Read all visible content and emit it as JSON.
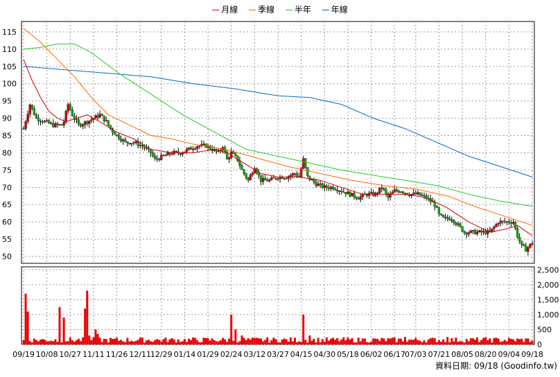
{
  "chart_data": {
    "type": "candlestick",
    "legend": [
      {
        "name": "月線",
        "color": "#cc0000"
      },
      {
        "name": "季線",
        "color": "#ff6600"
      },
      {
        "name": "半年",
        "color": "#22cc22"
      },
      {
        "name": "年線",
        "color": "#0066cc"
      }
    ],
    "price_axis": {
      "ticks": [
        "115",
        "110",
        "105",
        "100",
        "95",
        "90",
        "85",
        "80",
        "75",
        "70",
        "65",
        "60",
        "55",
        "50"
      ],
      "range": [
        48,
        118
      ]
    },
    "volume_axis": {
      "ticks": [
        "2,500",
        "2,000",
        "1,500",
        "1,000",
        "500",
        "0"
      ],
      "range": [
        0,
        2600
      ]
    },
    "x_labels": [
      "09/19",
      "10/08",
      "10/27",
      "11/11",
      "11/26",
      "12/11",
      "12/29",
      "01/14",
      "01/29",
      "02/24",
      "03/12",
      "03/27",
      "04/15",
      "04/30",
      "05/18",
      "06/02",
      "06/17",
      "07/03",
      "07/21",
      "08/05",
      "08/20",
      "09/04",
      "09/18"
    ],
    "price_anchors": [
      [
        0,
        87
      ],
      [
        3,
        94
      ],
      [
        6,
        90
      ],
      [
        10,
        89
      ],
      [
        14,
        88
      ],
      [
        18,
        88
      ],
      [
        19,
        89
      ],
      [
        21,
        94
      ],
      [
        23,
        91
      ],
      [
        26,
        88
      ],
      [
        30,
        89
      ],
      [
        33,
        90
      ],
      [
        36,
        91
      ],
      [
        39,
        89
      ],
      [
        41,
        87
      ],
      [
        44,
        85
      ],
      [
        48,
        83
      ],
      [
        52,
        83
      ],
      [
        56,
        82
      ],
      [
        60,
        80
      ],
      [
        62,
        78
      ],
      [
        66,
        79
      ],
      [
        70,
        80
      ],
      [
        74,
        80
      ],
      [
        78,
        81
      ],
      [
        82,
        82
      ],
      [
        86,
        82
      ],
      [
        89,
        81
      ],
      [
        92,
        80
      ],
      [
        94,
        82
      ],
      [
        96,
        78
      ],
      [
        98,
        80
      ],
      [
        101,
        78
      ],
      [
        103,
        75
      ],
      [
        106,
        72
      ],
      [
        109,
        76
      ],
      [
        112,
        72
      ],
      [
        116,
        72
      ],
      [
        120,
        73
      ],
      [
        124,
        73
      ],
      [
        128,
        74
      ],
      [
        130,
        73
      ],
      [
        132,
        78
      ],
      [
        134,
        73
      ],
      [
        138,
        71
      ],
      [
        142,
        70
      ],
      [
        146,
        70
      ],
      [
        150,
        69
      ],
      [
        154,
        68
      ],
      [
        158,
        67
      ],
      [
        162,
        68
      ],
      [
        166,
        68
      ],
      [
        169,
        70
      ],
      [
        172,
        67
      ],
      [
        175,
        69
      ],
      [
        178,
        69
      ],
      [
        182,
        68
      ],
      [
        186,
        68
      ],
      [
        190,
        67
      ],
      [
        194,
        65
      ],
      [
        196,
        62
      ],
      [
        198,
        61
      ],
      [
        202,
        61
      ],
      [
        205,
        59
      ],
      [
        208,
        57
      ],
      [
        212,
        57
      ],
      [
        216,
        57
      ],
      [
        220,
        57
      ],
      [
        224,
        60
      ],
      [
        228,
        60
      ],
      [
        231,
        60
      ],
      [
        233,
        56
      ],
      [
        235,
        53
      ],
      [
        237,
        52
      ],
      [
        240,
        54
      ]
    ],
    "ma_month": [
      [
        0,
        107
      ],
      [
        4,
        101
      ],
      [
        8,
        96
      ],
      [
        12,
        92
      ],
      [
        16,
        90
      ],
      [
        20,
        89
      ],
      [
        25,
        90
      ],
      [
        30,
        91
      ],
      [
        36,
        89
      ],
      [
        44,
        86
      ],
      [
        52,
        84
      ],
      [
        60,
        81
      ],
      [
        70,
        80
      ],
      [
        80,
        80
      ],
      [
        90,
        81
      ],
      [
        96,
        80
      ],
      [
        104,
        77
      ],
      [
        112,
        74
      ],
      [
        120,
        73
      ],
      [
        130,
        73
      ],
      [
        140,
        72
      ],
      [
        150,
        70
      ],
      [
        160,
        68
      ],
      [
        170,
        68
      ],
      [
        180,
        68
      ],
      [
        190,
        67
      ],
      [
        200,
        64
      ],
      [
        210,
        60
      ],
      [
        220,
        57
      ],
      [
        228,
        58
      ],
      [
        233,
        59
      ],
      [
        240,
        56
      ]
    ],
    "ma_quarter": [
      [
        0,
        116
      ],
      [
        8,
        112
      ],
      [
        16,
        107
      ],
      [
        24,
        102
      ],
      [
        32,
        96
      ],
      [
        40,
        91
      ],
      [
        50,
        88
      ],
      [
        60,
        85
      ],
      [
        70,
        84
      ],
      [
        80,
        82.5
      ],
      [
        95,
        81
      ],
      [
        110,
        78.5
      ],
      [
        125,
        76
      ],
      [
        140,
        74
      ],
      [
        155,
        72
      ],
      [
        170,
        70.5
      ],
      [
        185,
        69.5
      ],
      [
        200,
        67.5
      ],
      [
        215,
        64
      ],
      [
        230,
        61
      ],
      [
        240,
        59
      ]
    ],
    "ma_half": [
      [
        0,
        110
      ],
      [
        8,
        110.5
      ],
      [
        16,
        111.5
      ],
      [
        24,
        111.5
      ],
      [
        32,
        109
      ],
      [
        45,
        103
      ],
      [
        60,
        97
      ],
      [
        75,
        91
      ],
      [
        90,
        86
      ],
      [
        105,
        81
      ],
      [
        120,
        79
      ],
      [
        135,
        77
      ],
      [
        150,
        75
      ],
      [
        165,
        73.5
      ],
      [
        180,
        72
      ],
      [
        195,
        70.5
      ],
      [
        210,
        68
      ],
      [
        225,
        66
      ],
      [
        240,
        64.5
      ]
    ],
    "ma_year": [
      [
        0,
        105
      ],
      [
        20,
        104
      ],
      [
        40,
        103
      ],
      [
        60,
        102
      ],
      [
        80,
        100
      ],
      [
        100,
        98.5
      ],
      [
        120,
        96.5
      ],
      [
        135,
        96
      ],
      [
        150,
        94
      ],
      [
        165,
        90
      ],
      [
        180,
        87
      ],
      [
        195,
        83
      ],
      [
        210,
        79
      ],
      [
        225,
        76
      ],
      [
        240,
        73
      ]
    ],
    "volume_spikes": [
      [
        1,
        1700
      ],
      [
        2,
        1100
      ],
      [
        17,
        1250
      ],
      [
        19,
        900
      ],
      [
        29,
        1200
      ],
      [
        30,
        1800
      ],
      [
        31,
        300
      ],
      [
        34,
        500
      ],
      [
        35,
        350
      ],
      [
        98,
        1000
      ],
      [
        132,
        1000
      ],
      [
        100,
        500
      ],
      [
        103,
        300
      ],
      [
        135,
        300
      ],
      [
        160,
        200
      ],
      [
        180,
        250
      ],
      [
        200,
        250
      ],
      [
        220,
        200
      ]
    ],
    "volume_base": 150,
    "n_bars": 241
  },
  "source_label": "資料日期: 09/18  (Goodinfo.tw)"
}
